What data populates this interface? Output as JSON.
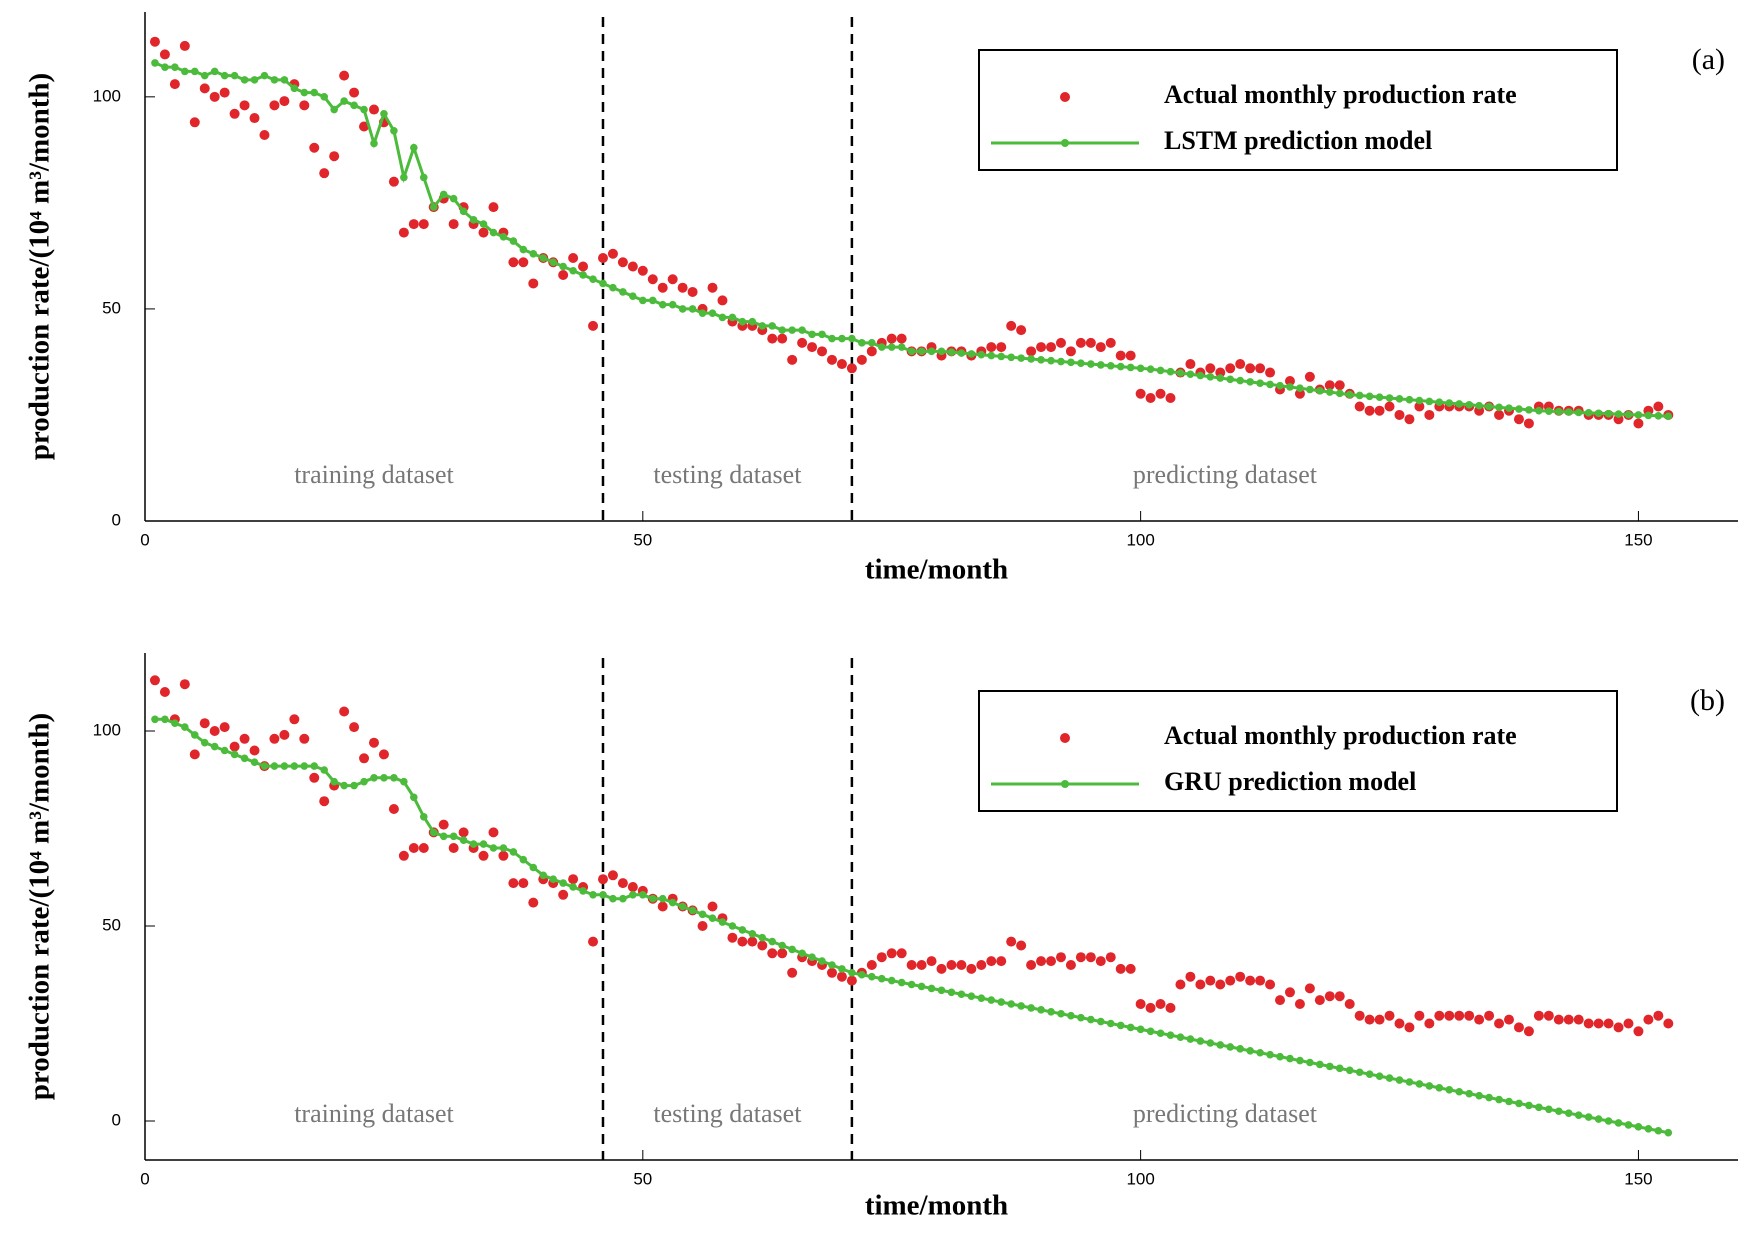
{
  "chart_data": [
    {
      "type": "scatter_line",
      "panel_label": "(a)",
      "xlabel": "time/month",
      "ylabel": "production rate/(10⁴ m³/month)",
      "xlim": [
        0,
        160
      ],
      "ylim": [
        0,
        120
      ],
      "xticks": [
        0,
        50,
        100,
        150
      ],
      "yticks": [
        0,
        50,
        100
      ],
      "dividers": [
        46,
        71
      ],
      "regions": [
        "training dataset",
        "testing dataset",
        "predicting dataset"
      ],
      "x": [
        1,
        2,
        3,
        4,
        5,
        6,
        7,
        8,
        9,
        10,
        11,
        12,
        13,
        14,
        15,
        16,
        17,
        18,
        19,
        20,
        21,
        22,
        23,
        24,
        25,
        26,
        27,
        28,
        29,
        30,
        31,
        32,
        33,
        34,
        35,
        36,
        37,
        38,
        39,
        40,
        41,
        42,
        43,
        44,
        45,
        46,
        47,
        48,
        49,
        50,
        51,
        52,
        53,
        54,
        55,
        56,
        57,
        58,
        59,
        60,
        61,
        62,
        63,
        64,
        65,
        66,
        67,
        68,
        69,
        70,
        71,
        72,
        73,
        74,
        75,
        76,
        77,
        78,
        79,
        80,
        81,
        82,
        83,
        84,
        85,
        86,
        87,
        88,
        89,
        90,
        91,
        92,
        93,
        94,
        95,
        96,
        97,
        98,
        99,
        100,
        101,
        102,
        103,
        104,
        105,
        106,
        107,
        108,
        109,
        110,
        111,
        112,
        113,
        114,
        115,
        116,
        117,
        118,
        119,
        120,
        121,
        122,
        123,
        124,
        125,
        126,
        127,
        128,
        129,
        130,
        131,
        132,
        133,
        134,
        135,
        136,
        137,
        138,
        139,
        140,
        141,
        142,
        143,
        144,
        145,
        146,
        147,
        148,
        149,
        150,
        151,
        152,
        153
      ],
      "series": [
        {
          "name": "Actual monthly production rate",
          "color": "#e0262a",
          "mode": "markers",
          "values": [
            113,
            110,
            103,
            112,
            94,
            102,
            100,
            101,
            96,
            98,
            95,
            91,
            98,
            99,
            103,
            98,
            88,
            82,
            86,
            105,
            101,
            93,
            97,
            94,
            80,
            68,
            70,
            70,
            74,
            76,
            70,
            74,
            70,
            68,
            74,
            68,
            61,
            61,
            56,
            62,
            61,
            58,
            62,
            60,
            46,
            62,
            63,
            61,
            60,
            59,
            57,
            55,
            57,
            55,
            54,
            50,
            55,
            52,
            47,
            46,
            46,
            45,
            43,
            43,
            38,
            42,
            41,
            40,
            38,
            37,
            36,
            38,
            40,
            42,
            43,
            43,
            40,
            40,
            41,
            39,
            40,
            40,
            39,
            40,
            41,
            41,
            46,
            45,
            40,
            41,
            41,
            42,
            40,
            42,
            42,
            41,
            42,
            39,
            39,
            30,
            29,
            30,
            29,
            35,
            37,
            35,
            36,
            35,
            36,
            37,
            36,
            36,
            35,
            31,
            33,
            30,
            34,
            31,
            32,
            32,
            30,
            27,
            26,
            26,
            27,
            25,
            24,
            27,
            25,
            27,
            27,
            27,
            27,
            26,
            27,
            25,
            26,
            24,
            23,
            27,
            27,
            26,
            26,
            26,
            25,
            25,
            25,
            24,
            25,
            23,
            26,
            27,
            25
          ]
        },
        {
          "name": "LSTM prediction model",
          "color": "#4cbb3c",
          "mode": "line",
          "values": [
            108,
            107,
            107,
            106,
            106,
            105,
            106,
            105,
            105,
            104,
            104,
            105,
            104,
            104,
            102,
            101,
            101,
            100,
            97,
            99,
            98,
            97,
            89,
            96,
            92,
            81,
            88,
            81,
            74,
            77,
            76,
            73,
            71,
            70,
            68,
            67,
            66,
            64,
            63,
            62,
            61,
            60,
            59,
            58,
            57,
            56,
            55,
            54,
            53,
            52,
            52,
            51,
            51,
            50,
            50,
            49,
            49,
            48,
            48,
            47,
            47,
            46,
            46,
            45,
            45,
            45,
            44,
            44,
            43,
            43,
            43,
            42,
            42,
            41,
            41,
            41,
            40,
            40,
            40,
            40,
            39.8,
            39.6,
            39.4,
            39.2,
            39.0,
            38.8,
            38.6,
            38.4,
            38.2,
            38.0,
            37.8,
            37.6,
            37.4,
            37.2,
            37.0,
            36.8,
            36.6,
            36.4,
            36.2,
            36.0,
            35.8,
            35.5,
            35.2,
            34.9,
            34.6,
            34.3,
            34.0,
            33.7,
            33.4,
            33.1,
            32.8,
            32.5,
            32.2,
            31.9,
            31.6,
            31.3,
            31.0,
            30.7,
            30.4,
            30.1,
            29.8,
            29.6,
            29.4,
            29.2,
            29.0,
            28.8,
            28.6,
            28.4,
            28.2,
            28.0,
            27.8,
            27.6,
            27.4,
            27.2,
            27.0,
            26.8,
            26.6,
            26.4,
            26.2,
            26.0,
            25.9,
            25.8,
            25.7,
            25.6,
            25.5,
            25.4,
            25.3,
            25.2,
            25.1,
            25.0,
            24.9,
            24.8,
            24.7
          ]
        }
      ]
    },
    {
      "type": "scatter_line",
      "panel_label": "(b)",
      "xlabel": "time/month",
      "ylabel": "production rate/(10⁴ m³/month)",
      "xlim": [
        0,
        160
      ],
      "ylim": [
        -10,
        120
      ],
      "xticks": [
        0,
        50,
        100,
        150
      ],
      "yticks": [
        0,
        50,
        100
      ],
      "dividers": [
        46,
        71
      ],
      "regions": [
        "training dataset",
        "testing dataset",
        "predicting dataset"
      ],
      "x": [
        1,
        2,
        3,
        4,
        5,
        6,
        7,
        8,
        9,
        10,
        11,
        12,
        13,
        14,
        15,
        16,
        17,
        18,
        19,
        20,
        21,
        22,
        23,
        24,
        25,
        26,
        27,
        28,
        29,
        30,
        31,
        32,
        33,
        34,
        35,
        36,
        37,
        38,
        39,
        40,
        41,
        42,
        43,
        44,
        45,
        46,
        47,
        48,
        49,
        50,
        51,
        52,
        53,
        54,
        55,
        56,
        57,
        58,
        59,
        60,
        61,
        62,
        63,
        64,
        65,
        66,
        67,
        68,
        69,
        70,
        71,
        72,
        73,
        74,
        75,
        76,
        77,
        78,
        79,
        80,
        81,
        82,
        83,
        84,
        85,
        86,
        87,
        88,
        89,
        90,
        91,
        92,
        93,
        94,
        95,
        96,
        97,
        98,
        99,
        100,
        101,
        102,
        103,
        104,
        105,
        106,
        107,
        108,
        109,
        110,
        111,
        112,
        113,
        114,
        115,
        116,
        117,
        118,
        119,
        120,
        121,
        122,
        123,
        124,
        125,
        126,
        127,
        128,
        129,
        130,
        131,
        132,
        133,
        134,
        135,
        136,
        137,
        138,
        139,
        140,
        141,
        142,
        143,
        144,
        145,
        146,
        147,
        148,
        149,
        150,
        151,
        152,
        153
      ],
      "series": [
        {
          "name": "Actual monthly production rate",
          "color": "#e0262a",
          "mode": "markers",
          "values": [
            113,
            110,
            103,
            112,
            94,
            102,
            100,
            101,
            96,
            98,
            95,
            91,
            98,
            99,
            103,
            98,
            88,
            82,
            86,
            105,
            101,
            93,
            97,
            94,
            80,
            68,
            70,
            70,
            74,
            76,
            70,
            74,
            70,
            68,
            74,
            68,
            61,
            61,
            56,
            62,
            61,
            58,
            62,
            60,
            46,
            62,
            63,
            61,
            60,
            59,
            57,
            55,
            57,
            55,
            54,
            50,
            55,
            52,
            47,
            46,
            46,
            45,
            43,
            43,
            38,
            42,
            41,
            40,
            38,
            37,
            36,
            38,
            40,
            42,
            43,
            43,
            40,
            40,
            41,
            39,
            40,
            40,
            39,
            40,
            41,
            41,
            46,
            45,
            40,
            41,
            41,
            42,
            40,
            42,
            42,
            41,
            42,
            39,
            39,
            30,
            29,
            30,
            29,
            35,
            37,
            35,
            36,
            35,
            36,
            37,
            36,
            36,
            35,
            31,
            33,
            30,
            34,
            31,
            32,
            32,
            30,
            27,
            26,
            26,
            27,
            25,
            24,
            27,
            25,
            27,
            27,
            27,
            27,
            26,
            27,
            25,
            26,
            24,
            23,
            27,
            27,
            26,
            26,
            26,
            25,
            25,
            25,
            24,
            25,
            23,
            26,
            27,
            25
          ]
        },
        {
          "name": "GRU prediction model",
          "color": "#4cbb3c",
          "mode": "line",
          "values": [
            103,
            103,
            102,
            101,
            99,
            97,
            96,
            95,
            94,
            93,
            92,
            91,
            91,
            91,
            91,
            91,
            91,
            90,
            87,
            86,
            86,
            87,
            88,
            88,
            88,
            87,
            83,
            78,
            74,
            73,
            73,
            72,
            71,
            71,
            70,
            70,
            69,
            67,
            65,
            63,
            62,
            61,
            60,
            59,
            58,
            58,
            57,
            57,
            58,
            58,
            57,
            57,
            56,
            55,
            54,
            53,
            52,
            51,
            50,
            49,
            48,
            47,
            46,
            45,
            44,
            43,
            42,
            41,
            40,
            39,
            38,
            37.5,
            37,
            36.5,
            36,
            35.5,
            35,
            34.5,
            34,
            33.5,
            33,
            32.5,
            32,
            31.5,
            31,
            30.5,
            30,
            29.5,
            29,
            28.5,
            28,
            27.5,
            27,
            26.5,
            26,
            25.5,
            25,
            24.5,
            24,
            23.5,
            23,
            22.5,
            22,
            21.5,
            21,
            20.5,
            20,
            19.5,
            19,
            18.5,
            18,
            17.5,
            17,
            16.5,
            16,
            15.5,
            15,
            14.5,
            14,
            13.5,
            13,
            12.5,
            12,
            11.5,
            11,
            10.5,
            10,
            9.5,
            9,
            8.5,
            8,
            7.5,
            7,
            6.5,
            6,
            5.5,
            5,
            4.5,
            4,
            3.5,
            3,
            2.5,
            2,
            1.5,
            1,
            0.5,
            0,
            -0.5,
            -1,
            -1.5,
            -2,
            -2.5,
            -3
          ]
        }
      ]
    }
  ]
}
